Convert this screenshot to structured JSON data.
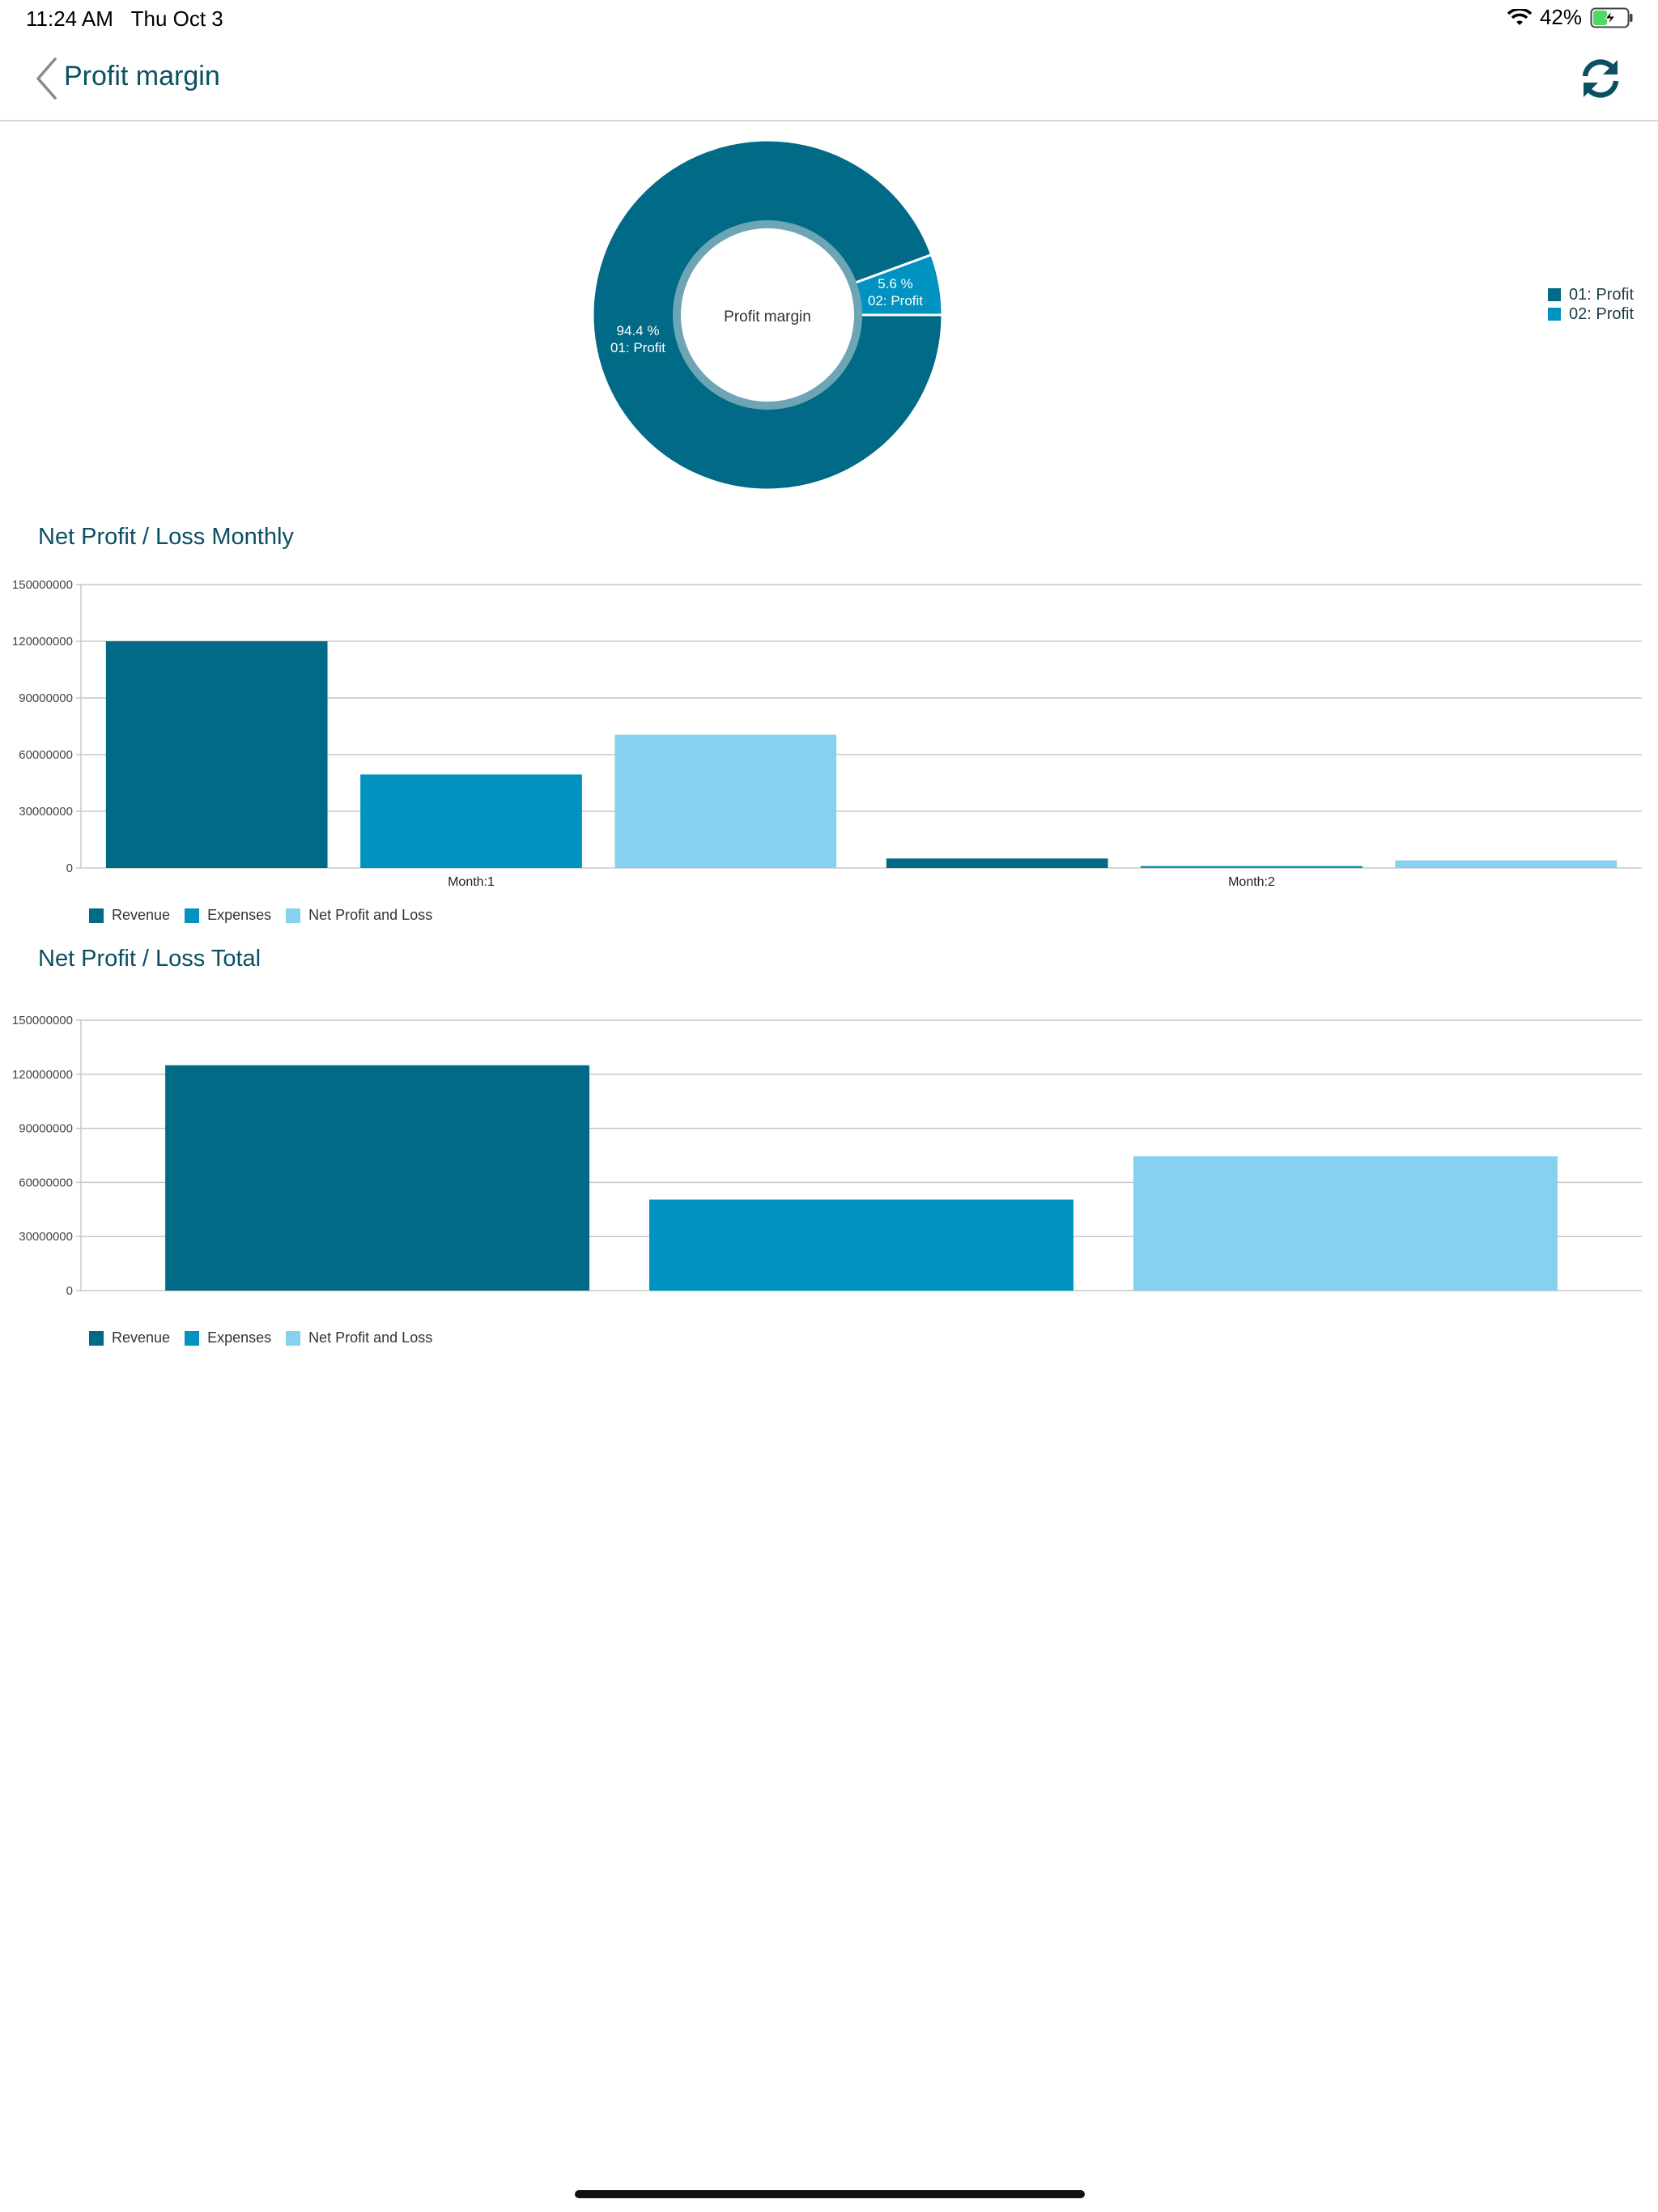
{
  "status_bar": {
    "time": "11:24 AM",
    "date": "Thu Oct 3",
    "battery": "42%",
    "battery_level": 0.42
  },
  "nav": {
    "title": "Profit margin",
    "back_icon": "chevron-left-icon",
    "refresh_icon": "refresh-icon"
  },
  "colors": {
    "revenue": "#006a87",
    "expenses": "#0092c1",
    "net": "#86d1f0",
    "title": "#0b4f63"
  },
  "donut": {
    "center_label": "Profit margin",
    "slices": [
      {
        "name": "01: Profit",
        "percent": 94.4,
        "label_pct": "94.4 %",
        "label_name": "01: Profit",
        "color": "#006a87"
      },
      {
        "name": "02: Profit",
        "percent": 5.6,
        "label_pct": "5.6 %",
        "label_name": "02: Profit",
        "color": "#0092c1"
      }
    ],
    "legend": [
      "01: Profit",
      "02: Profit"
    ]
  },
  "monthly": {
    "title": "Net Profit / Loss Monthly",
    "legend": [
      "Revenue",
      "Expenses",
      "Net Profit and Loss"
    ]
  },
  "total": {
    "title": "Net Profit / Loss Total",
    "legend": [
      "Revenue",
      "Expenses",
      "Net Profit and Loss"
    ]
  },
  "chart_data": [
    {
      "type": "pie",
      "title": "Profit margin",
      "categories": [
        "01: Profit",
        "02: Profit"
      ],
      "values": [
        94.4,
        5.6
      ]
    },
    {
      "type": "bar",
      "title": "Net Profit / Loss Monthly",
      "categories": [
        "Month:1",
        "Month:2"
      ],
      "series": [
        {
          "name": "Revenue",
          "values": [
            120000000,
            5000000
          ]
        },
        {
          "name": "Expenses",
          "values": [
            49500000,
            1000000
          ]
        },
        {
          "name": "Net Profit and Loss",
          "values": [
            70500000,
            4000000
          ]
        }
      ],
      "ylim": [
        0,
        150000000
      ],
      "yticks": [
        "0",
        "30000000",
        "60000000",
        "90000000",
        "120000000",
        "150000000"
      ],
      "legend_position": "bottom-left",
      "grid": true
    },
    {
      "type": "bar",
      "title": "Net Profit / Loss Total",
      "categories": [
        ""
      ],
      "series": [
        {
          "name": "Revenue",
          "values": [
            125000000
          ]
        },
        {
          "name": "Expenses",
          "values": [
            50500000
          ]
        },
        {
          "name": "Net Profit and Loss",
          "values": [
            74500000
          ]
        }
      ],
      "ylim": [
        0,
        150000000
      ],
      "yticks": [
        "0",
        "30000000",
        "60000000",
        "90000000",
        "120000000",
        "150000000"
      ],
      "legend_position": "bottom-left",
      "grid": true
    }
  ]
}
